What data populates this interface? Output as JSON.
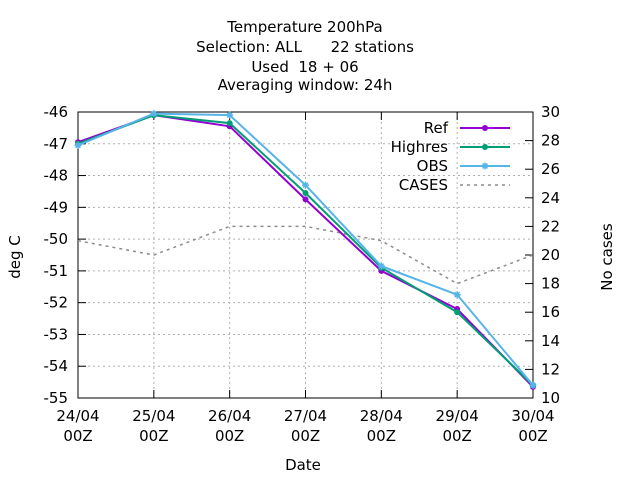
{
  "chart_data": {
    "type": "line",
    "title": [
      "Temperature 200hPa",
      "Selection: ALL      22 stations",
      "Used  18 + 06",
      "Averaging window: 24h"
    ],
    "xlabel": "Date",
    "ylabel": "deg C",
    "y2label": "No cases",
    "categories": [
      [
        "24/04",
        "00Z"
      ],
      [
        "25/04",
        "00Z"
      ],
      [
        "26/04",
        "00Z"
      ],
      [
        "27/04",
        "00Z"
      ],
      [
        "28/04",
        "00Z"
      ],
      [
        "29/04",
        "00Z"
      ],
      [
        "30/04",
        "00Z"
      ]
    ],
    "ylim": [
      -55,
      -46
    ],
    "yticks": [
      -46,
      -47,
      -48,
      -49,
      -50,
      -51,
      -52,
      -53,
      -54,
      -55
    ],
    "y2lim": [
      10,
      30
    ],
    "y2ticks": [
      30,
      28,
      26,
      24,
      22,
      20,
      18,
      16,
      14,
      12,
      10
    ],
    "grid": true,
    "legend_position": "top-right",
    "series": [
      {
        "name": "Ref",
        "color": "#9400d3",
        "marker": "filled-circle",
        "axis": "y",
        "values": [
          -46.95,
          -46.1,
          -46.45,
          -48.75,
          -51.0,
          -52.2,
          -54.65
        ]
      },
      {
        "name": "Highres",
        "color": "#009e73",
        "marker": "filled-circle",
        "axis": "y",
        "values": [
          -47.0,
          -46.1,
          -46.35,
          -48.55,
          -50.9,
          -52.3,
          -54.6
        ]
      },
      {
        "name": "OBS",
        "color": "#56b4e9",
        "marker": "star",
        "axis": "y",
        "values": [
          -47.05,
          -46.05,
          -46.1,
          -48.3,
          -50.85,
          -51.75,
          -54.6
        ]
      },
      {
        "name": "CASES",
        "color": "#8c8c8c",
        "marker": "none",
        "axis": "y2",
        "dash": true,
        "values": [
          21,
          20,
          22,
          22,
          21,
          18,
          20
        ]
      }
    ]
  }
}
